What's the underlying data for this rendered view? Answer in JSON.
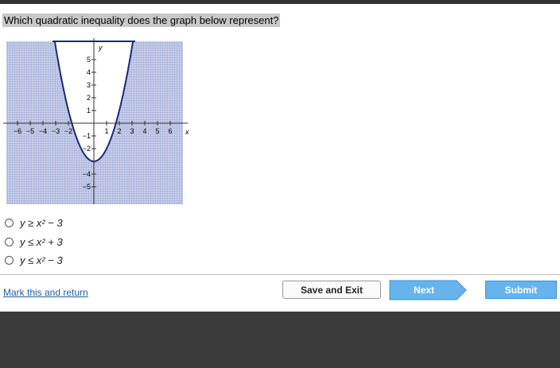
{
  "question": "Which quadratic inequality does the graph below represent?",
  "graph": {
    "x_label": "x",
    "y_label": "y",
    "xticks": [
      {
        "value": -6,
        "label": "−6"
      },
      {
        "value": -5,
        "label": "−5"
      },
      {
        "value": -4,
        "label": "−4"
      },
      {
        "value": -3,
        "label": "−3"
      },
      {
        "value": -2,
        "label": "−2"
      },
      {
        "value": 1,
        "label": "1"
      },
      {
        "value": 2,
        "label": "2"
      },
      {
        "value": 3,
        "label": "3"
      },
      {
        "value": 4,
        "label": "4"
      },
      {
        "value": 5,
        "label": "5"
      },
      {
        "value": 6,
        "label": "6"
      }
    ],
    "yticks": [
      {
        "value": 5,
        "label": "5"
      },
      {
        "value": 4,
        "label": "4"
      },
      {
        "value": 3,
        "label": "3"
      },
      {
        "value": 2,
        "label": "2"
      },
      {
        "value": 1,
        "label": "1"
      },
      {
        "value": -1,
        "label": "−1"
      },
      {
        "value": -2,
        "label": "−2"
      },
      {
        "value": -4,
        "label": "−4"
      },
      {
        "value": -5,
        "label": "−5"
      }
    ]
  },
  "options": [
    "y ≥ x² − 3",
    "y ≤ x² + 3",
    "y ≤ x² − 3"
  ],
  "footer": {
    "link": "Mark this and return",
    "save": "Save and Exit",
    "next": "Next",
    "submit": "Submit"
  }
}
